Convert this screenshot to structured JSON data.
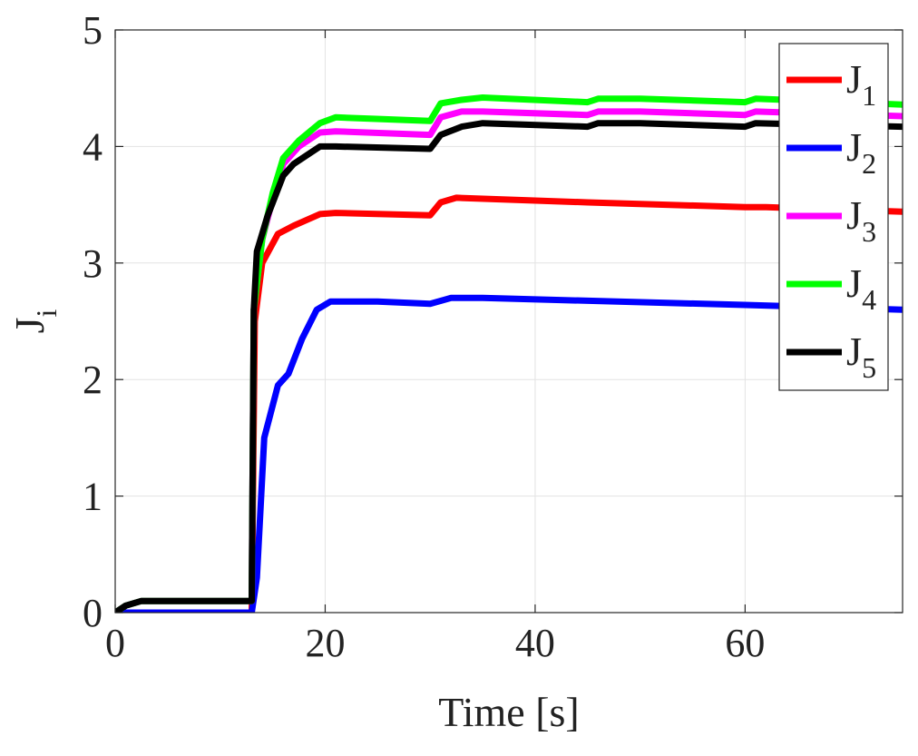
{
  "chart_data": {
    "type": "line",
    "title": "",
    "xlabel": "Time [s]",
    "ylabel": "J",
    "ylabel_sub": "i",
    "xlim": [
      0,
      75
    ],
    "ylim": [
      0,
      5
    ],
    "xticks": [
      0,
      20,
      40,
      60
    ],
    "yticks": [
      0,
      1,
      2,
      3,
      4,
      5
    ],
    "grid": true,
    "legend_position": "top-right",
    "series": [
      {
        "name": "J",
        "sub": "1",
        "color": "#ff0000",
        "x": [
          0,
          13,
          13.3,
          14,
          15.5,
          17,
          19.5,
          21,
          30,
          31,
          32.5,
          45,
          60,
          62,
          75
        ],
        "y": [
          0,
          0,
          2.5,
          3.0,
          3.25,
          3.32,
          3.42,
          3.43,
          3.41,
          3.52,
          3.56,
          3.52,
          3.48,
          3.48,
          3.44
        ]
      },
      {
        "name": "J",
        "sub": "2",
        "color": "#0000ff",
        "x": [
          0,
          13,
          13.5,
          14.2,
          15.5,
          16.5,
          17.8,
          19.2,
          20.5,
          25,
          30,
          32,
          35,
          60,
          75
        ],
        "y": [
          0,
          0,
          0.3,
          1.5,
          1.95,
          2.05,
          2.35,
          2.6,
          2.67,
          2.67,
          2.65,
          2.7,
          2.7,
          2.64,
          2.6
        ]
      },
      {
        "name": "J",
        "sub": "3",
        "color": "#ff00ff",
        "x": [
          0,
          1,
          2.5,
          13,
          13.2,
          14,
          15,
          16,
          17.5,
          19.5,
          21,
          30,
          31,
          33,
          35,
          45,
          46,
          50,
          60,
          61,
          75
        ],
        "y": [
          0,
          0.06,
          0.1,
          0.1,
          2.6,
          3.2,
          3.55,
          3.85,
          4.0,
          4.12,
          4.13,
          4.1,
          4.25,
          4.3,
          4.3,
          4.27,
          4.3,
          4.3,
          4.27,
          4.3,
          4.26
        ]
      },
      {
        "name": "J",
        "sub": "4",
        "color": "#00ff00",
        "x": [
          0,
          1,
          2.5,
          13,
          13.2,
          14,
          15,
          16,
          17.5,
          19.5,
          21,
          30,
          31,
          33,
          35,
          45,
          46,
          50,
          60,
          61,
          75
        ],
        "y": [
          0,
          0.06,
          0.1,
          0.1,
          2.6,
          3.2,
          3.6,
          3.9,
          4.05,
          4.2,
          4.25,
          4.22,
          4.37,
          4.4,
          4.42,
          4.38,
          4.41,
          4.41,
          4.38,
          4.41,
          4.36
        ]
      },
      {
        "name": "J",
        "sub": "5",
        "color": "#000000",
        "x": [
          0,
          1,
          2.5,
          13,
          13.2,
          13.5,
          14.5,
          16,
          17,
          19.5,
          21,
          30,
          31,
          33,
          35,
          45,
          46,
          50,
          60,
          61,
          75
        ],
        "y": [
          0,
          0.06,
          0.1,
          0.1,
          2.6,
          3.1,
          3.4,
          3.75,
          3.85,
          4.0,
          4.0,
          3.98,
          4.1,
          4.17,
          4.2,
          4.17,
          4.2,
          4.2,
          4.17,
          4.2,
          4.17
        ]
      }
    ]
  }
}
